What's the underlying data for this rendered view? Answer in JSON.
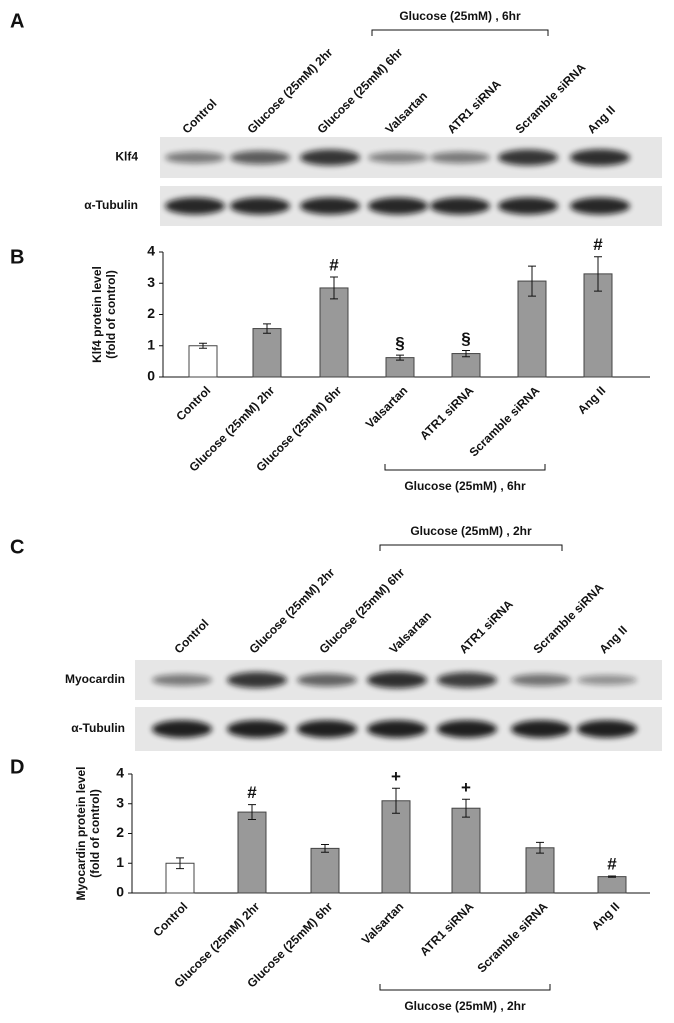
{
  "panel_labels": [
    "A",
    "B",
    "C",
    "D"
  ],
  "blot_a": {
    "lanes": [
      "Control",
      "Glucose (25mM) 2hr",
      "Glucose (25mM)  6hr",
      "Valsartan",
      "ATR1 siRNA",
      "Scramble siRNA",
      "Ang II"
    ],
    "bracket": "Glucose  (25mM) , 6hr",
    "rows": [
      "Klf4",
      "α-Tubulin"
    ]
  },
  "blot_c": {
    "lanes": [
      "Control",
      "Glucose (25mM)  2hr",
      "Glucose (25mM) 6hr",
      "Valsartan",
      "ATR1 siRNA",
      "Scramble siRNA",
      "Ang II"
    ],
    "bracket": "Glucose  (25mM) , 2hr",
    "rows": [
      "Myocardin",
      "α-Tubulin"
    ]
  },
  "chart_data": [
    {
      "type": "bar",
      "ylabel": [
        "Klf4  protein level",
        "(fold of control)"
      ],
      "categories": [
        "Control",
        "Glucose (25mM) 2hr",
        "Glucose (25mM)  6hr",
        "Valsartan",
        "ATR1 siRNA",
        "Scramble siRNA",
        "Ang II"
      ],
      "values": [
        1.0,
        1.55,
        2.85,
        0.62,
        0.75,
        3.07,
        3.3
      ],
      "errors": [
        0.08,
        0.15,
        0.35,
        0.08,
        0.1,
        0.48,
        0.55
      ],
      "colors": [
        "#ffffff",
        "#999999",
        "#999999",
        "#999999",
        "#999999",
        "#999999",
        "#999999"
      ],
      "markers": [
        null,
        null,
        "#",
        "§",
        "§",
        null,
        "#"
      ],
      "bracket": "Glucose  (25mM) , 6hr",
      "ylim": [
        0,
        4
      ],
      "yticks": [
        0,
        1,
        2,
        3,
        4
      ]
    },
    {
      "type": "bar",
      "ylabel": [
        "Myocardin protein level",
        "(fold of control)"
      ],
      "categories": [
        "Control",
        "Glucose (25mM)  2hr",
        "Glucose (25mM)  6hr",
        "Valsartan",
        "ATR1 siRNA",
        "Scramble siRNA",
        "Ang II"
      ],
      "values": [
        1.0,
        2.72,
        1.5,
        3.1,
        2.85,
        1.52,
        0.55
      ],
      "errors": [
        0.18,
        0.25,
        0.13,
        0.42,
        0.3,
        0.18,
        0.02
      ],
      "colors": [
        "#ffffff",
        "#999999",
        "#999999",
        "#999999",
        "#999999",
        "#999999",
        "#999999"
      ],
      "markers": [
        null,
        "#",
        null,
        "+",
        "+",
        null,
        "#"
      ],
      "bracket": "Glucose  (25mM) , 2hr",
      "ylim": [
        0,
        4
      ],
      "yticks": [
        0,
        1,
        2,
        3,
        4
      ]
    }
  ]
}
